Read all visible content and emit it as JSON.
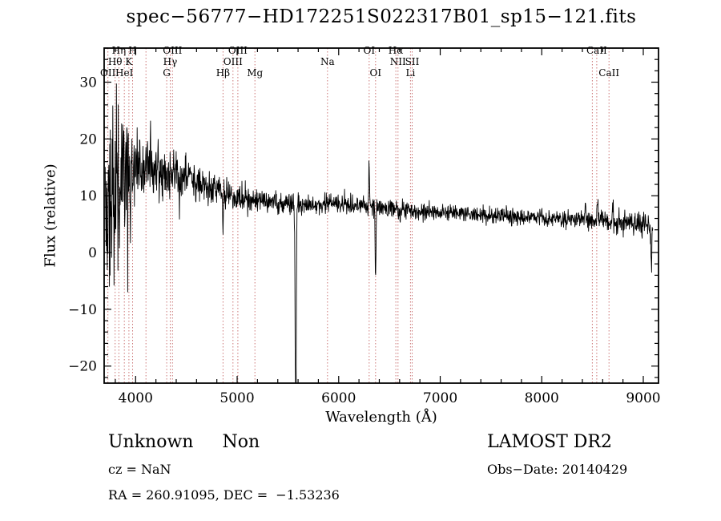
{
  "chart_data": {
    "type": "line",
    "title": "spec−56777−HD172251S022317B01_sp15−121.fits",
    "xlabel": "Wavelength (Å)",
    "ylabel": "Flux (relative)",
    "xlim": [
      3690,
      9150
    ],
    "ylim": [
      -23,
      36
    ],
    "xticks": [
      4000,
      5000,
      6000,
      7000,
      8000,
      9000
    ],
    "yticks": [
      -20,
      -10,
      0,
      10,
      20,
      30
    ],
    "x_minor_step": 200,
    "y_minor_step": 2,
    "grid": false,
    "legend": "none",
    "sample_range": [
      3700,
      9095
    ],
    "sample_step": 3,
    "seed": 20140429,
    "colors": {
      "spectrum": "#000000",
      "line_marker": "#cc7777",
      "axis": "#000000"
    },
    "spectral_lines": [
      {
        "wavelength": 3727,
        "label": "OII",
        "row": 3
      },
      {
        "wavelength": 3798,
        "label": "Hθ",
        "row": 2
      },
      {
        "wavelength": 3835,
        "label": "Hη",
        "row": 1
      },
      {
        "wavelength": 3889,
        "label": "HeI",
        "row": 3
      },
      {
        "wavelength": 3934,
        "label": "K",
        "row": 2
      },
      {
        "wavelength": 3970,
        "label": "H",
        "row": 1
      },
      {
        "wavelength": 4102,
        "label": "",
        "row": 2
      },
      {
        "wavelength": 4306,
        "label": "G",
        "row": 3
      },
      {
        "wavelength": 4341,
        "label": "Hγ",
        "row": 2
      },
      {
        "wavelength": 4363,
        "label": "OIII",
        "row": 1
      },
      {
        "wavelength": 4861,
        "label": "Hβ",
        "row": 3
      },
      {
        "wavelength": 4959,
        "label": "OIII",
        "row": 2
      },
      {
        "wavelength": 5007,
        "label": "OIII",
        "row": 1
      },
      {
        "wavelength": 5175,
        "label": "Mg",
        "row": 3
      },
      {
        "wavelength": 5890,
        "label": "Na",
        "row": 2
      },
      {
        "wavelength": 6300,
        "label": "OI",
        "row": 1
      },
      {
        "wavelength": 6363,
        "label": "OI",
        "row": 3
      },
      {
        "wavelength": 6563,
        "label": "Hα",
        "row": 1
      },
      {
        "wavelength": 6584,
        "label": "NII",
        "row": 2
      },
      {
        "wavelength": 6707,
        "label": "Li",
        "row": 3
      },
      {
        "wavelength": 6724,
        "label": "SII",
        "row": 2
      },
      {
        "wavelength": 8498,
        "label": "",
        "row": 1
      },
      {
        "wavelength": 8542,
        "label": "CaII",
        "row": 1
      },
      {
        "wavelength": 8662,
        "label": "CaII",
        "row": 3
      }
    ],
    "continuum": [
      [
        3700,
        9
      ],
      [
        3750,
        10
      ],
      [
        3800,
        10
      ],
      [
        3850,
        11
      ],
      [
        3900,
        12
      ],
      [
        3950,
        13
      ],
      [
        4000,
        14
      ],
      [
        4100,
        15
      ],
      [
        4200,
        15
      ],
      [
        4300,
        14.5
      ],
      [
        4400,
        14
      ],
      [
        4500,
        13
      ],
      [
        4600,
        12
      ],
      [
        4700,
        11.5
      ],
      [
        4800,
        11
      ],
      [
        4900,
        10.5
      ],
      [
        5000,
        10
      ],
      [
        5100,
        9.5
      ],
      [
        5200,
        9.2
      ],
      [
        5300,
        9
      ],
      [
        5400,
        8.8
      ],
      [
        5500,
        8.6
      ],
      [
        5600,
        8.4
      ],
      [
        5700,
        8.3
      ],
      [
        5800,
        8.4
      ],
      [
        5900,
        8.6
      ],
      [
        6000,
        8.8
      ],
      [
        6100,
        8.5
      ],
      [
        6200,
        8.2
      ],
      [
        6300,
        8
      ],
      [
        6400,
        7.8
      ],
      [
        6500,
        7.7
      ],
      [
        6600,
        7.5
      ],
      [
        6700,
        7.4
      ],
      [
        6800,
        7.3
      ],
      [
        6900,
        7.2
      ],
      [
        7000,
        7
      ],
      [
        7200,
        6.8
      ],
      [
        7400,
        6.6
      ],
      [
        7600,
        6.4
      ],
      [
        7800,
        6.2
      ],
      [
        8000,
        6
      ],
      [
        8200,
        5.9
      ],
      [
        8400,
        5.8
      ],
      [
        8600,
        5.6
      ],
      [
        8800,
        5.3
      ],
      [
        9000,
        5
      ],
      [
        9100,
        4.6
      ]
    ],
    "noise_sigma": [
      [
        3700,
        8
      ],
      [
        3780,
        8
      ],
      [
        3850,
        7
      ],
      [
        3920,
        6
      ],
      [
        3980,
        4.5
      ],
      [
        4050,
        3.2
      ],
      [
        4150,
        2.6
      ],
      [
        4300,
        2.2
      ],
      [
        4500,
        1.8
      ],
      [
        4700,
        1.5
      ],
      [
        5000,
        1.1
      ],
      [
        5300,
        0.9
      ],
      [
        5600,
        0.85
      ],
      [
        6000,
        0.85
      ],
      [
        6500,
        0.75
      ],
      [
        7000,
        0.7
      ],
      [
        7500,
        0.7
      ],
      [
        8000,
        0.7
      ],
      [
        8400,
        0.8
      ],
      [
        8700,
        0.9
      ],
      [
        9000,
        1.1
      ],
      [
        9100,
        1.4
      ]
    ],
    "features": [
      {
        "wavelength": 4430,
        "delta": -5,
        "width": 4,
        "name": "absorption-dip"
      },
      {
        "wavelength": 4860,
        "delta": -6,
        "width": 4,
        "name": "hbeta-dip"
      },
      {
        "wavelength": 5577,
        "delta": -45,
        "width": 5,
        "name": "sky-line-residual"
      },
      {
        "wavelength": 6300,
        "delta": 7.5,
        "width": 4,
        "name": "oi-sky-spike-up"
      },
      {
        "wavelength": 6363,
        "delta": -13,
        "width": 4,
        "name": "oi-sky-spike-down"
      },
      {
        "wavelength": 8430,
        "delta": 3,
        "width": 5,
        "name": "red-spike-1"
      },
      {
        "wavelength": 8550,
        "delta": 4,
        "width": 5,
        "name": "red-spike-2"
      },
      {
        "wavelength": 8700,
        "delta": 3,
        "width": 5,
        "name": "red-spike-3"
      },
      {
        "wavelength": 9080,
        "delta": -7,
        "width": 5,
        "name": "red-end-dip"
      }
    ]
  },
  "footer": {
    "class_label": "Unknown",
    "subclass_label": "Non",
    "cz": "cz = NaN",
    "radec": "RA = 260.91095, DEC =  −1.53236",
    "survey": "LAMOST DR2",
    "obs_date": "Obs−Date: 20140429"
  }
}
